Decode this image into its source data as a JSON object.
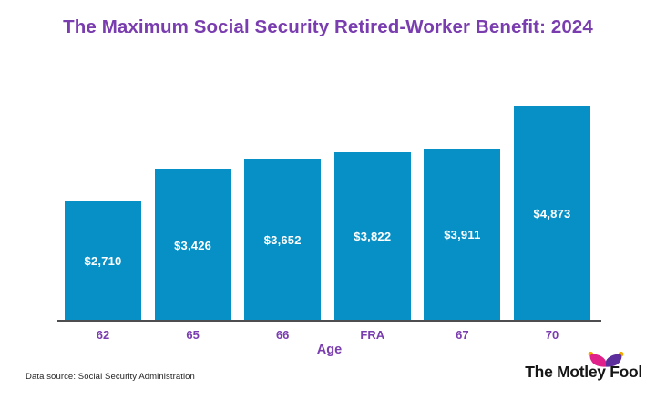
{
  "chart_data": {
    "type": "bar",
    "title": "The Maximum Social Security Retired-Worker Benefit: 2024",
    "categories": [
      "62",
      "65",
      "66",
      "FRA",
      "67",
      "70"
    ],
    "values": [
      2710,
      3426,
      3652,
      3822,
      3911,
      4873
    ],
    "value_labels": [
      "$2,710",
      "$3,426",
      "$3,652",
      "$3,822",
      "$3,911",
      "$4,873"
    ],
    "xlabel": "Age",
    "ylabel": "",
    "ylim": [
      0,
      4873
    ],
    "grid": "off",
    "legend": "none",
    "bar_color": "#0790c5",
    "value_label_color": "#ffffff",
    "axis_label_color": "#7a3daf",
    "title_color": "#7a3daf"
  },
  "footer": {
    "source_note": "Data source: Social Security Administration",
    "brand_name": "The Motley Fool"
  },
  "icons": {
    "jester_hat": {
      "left_color": "#e0218a",
      "right_color": "#5c2e9b",
      "bell_color": "#f2a900"
    }
  }
}
